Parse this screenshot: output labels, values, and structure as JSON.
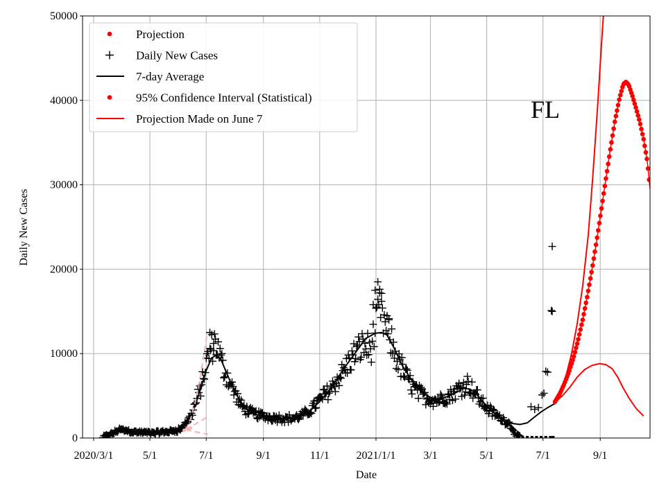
{
  "chart_data": {
    "type": "line",
    "state_label": "FL",
    "xlabel": "Date",
    "ylabel": "Daily New Cases",
    "ylim": [
      0,
      50000
    ],
    "xlim_days": [
      -12,
      603
    ],
    "x_origin": "2020-03-01",
    "grid": true,
    "legend_position": "top-left",
    "y_ticks": [
      {
        "value": 0,
        "label": "0"
      },
      {
        "value": 10000,
        "label": "10000"
      },
      {
        "value": 20000,
        "label": "20000"
      },
      {
        "value": 30000,
        "label": "30000"
      },
      {
        "value": 40000,
        "label": "40000"
      },
      {
        "value": 50000,
        "label": "50000"
      }
    ],
    "x_ticks": [
      {
        "day": 0,
        "label": "2020/3/1"
      },
      {
        "day": 61,
        "label": "5/1"
      },
      {
        "day": 122,
        "label": "7/1"
      },
      {
        "day": 184,
        "label": "9/1"
      },
      {
        "day": 245,
        "label": "11/1"
      },
      {
        "day": 306,
        "label": "2021/1/1"
      },
      {
        "day": 365,
        "label": "3/1"
      },
      {
        "day": 426,
        "label": "5/1"
      },
      {
        "day": 487,
        "label": "7/1"
      },
      {
        "day": 549,
        "label": "9/1"
      }
    ],
    "legend": [
      {
        "label": "Projection",
        "kind": "dot",
        "color": "#ff0000"
      },
      {
        "label": "Daily New Cases",
        "kind": "plus",
        "color": "#000000"
      },
      {
        "label": "7-day Average",
        "kind": "line",
        "color": "#000000"
      },
      {
        "label": "95% Confidence Interval (Statistical)",
        "kind": "dot",
        "color": "#ff0000"
      },
      {
        "label": "Projection Made on June 7",
        "kind": "line",
        "color": "#ff0000"
      }
    ],
    "series": [
      {
        "name": "7-day Average",
        "color": "#000000",
        "points": [
          [
            14,
            100
          ],
          [
            20,
            450
          ],
          [
            26,
            850
          ],
          [
            32,
            950
          ],
          [
            40,
            800
          ],
          [
            50,
            650
          ],
          [
            60,
            600
          ],
          [
            70,
            650
          ],
          [
            80,
            700
          ],
          [
            90,
            1000
          ],
          [
            100,
            1800
          ],
          [
            108,
            3200
          ],
          [
            115,
            5500
          ],
          [
            122,
            8000
          ],
          [
            128,
            9500
          ],
          [
            133,
            9800
          ],
          [
            138,
            9300
          ],
          [
            143,
            8000
          ],
          [
            150,
            6200
          ],
          [
            158,
            4500
          ],
          [
            165,
            3500
          ],
          [
            175,
            2800
          ],
          [
            185,
            2600
          ],
          [
            195,
            2500
          ],
          [
            205,
            2300
          ],
          [
            215,
            2300
          ],
          [
            225,
            2600
          ],
          [
            235,
            3300
          ],
          [
            245,
            4300
          ],
          [
            255,
            5600
          ],
          [
            265,
            7200
          ],
          [
            275,
            8800
          ],
          [
            285,
            10300
          ],
          [
            295,
            11800
          ],
          [
            305,
            12400
          ],
          [
            312,
            12500
          ],
          [
            318,
            12200
          ],
          [
            325,
            10800
          ],
          [
            335,
            8500
          ],
          [
            345,
            6800
          ],
          [
            355,
            5500
          ],
          [
            365,
            4800
          ],
          [
            375,
            4500
          ],
          [
            385,
            5000
          ],
          [
            395,
            5500
          ],
          [
            400,
            5900
          ],
          [
            408,
            5800
          ],
          [
            415,
            5200
          ],
          [
            425,
            3900
          ],
          [
            435,
            2900
          ],
          [
            445,
            2000
          ],
          [
            455,
            1700
          ],
          [
            462,
            1600
          ],
          [
            470,
            1800
          ],
          [
            478,
            2500
          ],
          [
            485,
            3100
          ],
          [
            492,
            3600
          ],
          [
            500,
            4100
          ]
        ]
      },
      {
        "name": "Projection",
        "color": "#ff0000",
        "points": [
          [
            500,
            4300
          ],
          [
            505,
            5200
          ],
          [
            510,
            6400
          ],
          [
            515,
            7800
          ],
          [
            520,
            9500
          ],
          [
            525,
            11600
          ],
          [
            530,
            14000
          ],
          [
            535,
            16800
          ],
          [
            540,
            19900
          ],
          [
            545,
            23300
          ],
          [
            550,
            26900
          ],
          [
            555,
            30600
          ],
          [
            560,
            34200
          ],
          [
            565,
            37600
          ],
          [
            570,
            40300
          ],
          [
            574,
            41900
          ],
          [
            577,
            42200
          ],
          [
            580,
            41800
          ],
          [
            584,
            40500
          ],
          [
            588,
            39000
          ],
          [
            592,
            37400
          ],
          [
            596,
            35400
          ],
          [
            600,
            32800
          ],
          [
            603,
            29500
          ]
        ]
      },
      {
        "name": "Projection Made on June 7",
        "color": "#ff0000",
        "points": [
          [
            500,
            4200
          ],
          [
            508,
            5000
          ],
          [
            516,
            6000
          ],
          [
            524,
            7200
          ],
          [
            532,
            8100
          ],
          [
            540,
            8600
          ],
          [
            548,
            8800
          ],
          [
            555,
            8700
          ],
          [
            562,
            8200
          ],
          [
            568,
            7200
          ],
          [
            574,
            5900
          ],
          [
            581,
            4600
          ],
          [
            588,
            3500
          ],
          [
            596,
            2600
          ]
        ]
      },
      {
        "name": "Upper projection bound",
        "color": "#ff0000",
        "points": [
          [
            500,
            4300
          ],
          [
            506,
            5600
          ],
          [
            512,
            7400
          ],
          [
            518,
            10000
          ],
          [
            524,
            13500
          ],
          [
            530,
            18000
          ],
          [
            536,
            24000
          ],
          [
            541,
            31000
          ],
          [
            546,
            39000
          ],
          [
            550,
            46000
          ],
          [
            553,
            51000
          ]
        ]
      },
      {
        "name": "Early June projection (faded)",
        "color": "#f4b6b6",
        "points": [
          [
            100,
            1000
          ],
          [
            105,
            2200
          ],
          [
            110,
            4200
          ],
          [
            115,
            6800
          ],
          [
            119,
            9600
          ],
          [
            123,
            12300
          ]
        ]
      },
      {
        "name": "Early June lower bound (faded)",
        "color": "#f4b6b6",
        "points": [
          [
            100,
            1000
          ],
          [
            108,
            800
          ],
          [
            116,
            600
          ],
          [
            124,
            450
          ]
        ]
      },
      {
        "name": "Early June mid bound (faded)",
        "color": "#f4b6b6",
        "points": [
          [
            100,
            1000
          ],
          [
            108,
            1500
          ],
          [
            116,
            2000
          ],
          [
            123,
            2500
          ]
        ]
      }
    ],
    "daily_new_cases_anchors": [
      [
        0,
        0
      ],
      [
        10,
        100
      ],
      [
        20,
        500
      ],
      [
        28,
        1000
      ],
      [
        35,
        900
      ],
      [
        45,
        700
      ],
      [
        55,
        650
      ],
      [
        65,
        600
      ],
      [
        75,
        700
      ],
      [
        85,
        800
      ],
      [
        95,
        1100
      ],
      [
        105,
        2500
      ],
      [
        115,
        5500
      ],
      [
        125,
        10000
      ],
      [
        132,
        11500
      ],
      [
        140,
        8500
      ],
      [
        150,
        6000
      ],
      [
        160,
        3800
      ],
      [
        170,
        3000
      ],
      [
        180,
        2700
      ],
      [
        190,
        2500
      ],
      [
        200,
        2400
      ],
      [
        210,
        2300
      ],
      [
        220,
        2400
      ],
      [
        232,
        3000
      ],
      [
        245,
        4500
      ],
      [
        258,
        6000
      ],
      [
        270,
        7800
      ],
      [
        282,
        9800
      ],
      [
        292,
        11000
      ],
      [
        300,
        10500
      ],
      [
        306,
        13000
      ],
      [
        310,
        15500
      ],
      [
        315,
        13500
      ],
      [
        322,
        11500
      ],
      [
        330,
        9000
      ],
      [
        340,
        7000
      ],
      [
        350,
        5500
      ],
      [
        360,
        4800
      ],
      [
        372,
        4500
      ],
      [
        385,
        5000
      ],
      [
        398,
        6000
      ],
      [
        405,
        6500
      ],
      [
        412,
        5600
      ],
      [
        420,
        4300
      ],
      [
        430,
        3200
      ],
      [
        440,
        2400
      ],
      [
        450,
        1800
      ],
      [
        458,
        300
      ],
      [
        465,
        0
      ],
      [
        500,
        0
      ]
    ],
    "daily_new_cases_outliers": [
      [
        474,
        3700
      ],
      [
        478,
        3400
      ],
      [
        482,
        3600
      ],
      [
        486,
        5100
      ],
      [
        488,
        5300
      ],
      [
        490,
        7900
      ],
      [
        492,
        7800
      ],
      [
        496,
        15100
      ],
      [
        497,
        15000
      ],
      [
        497,
        22700
      ],
      [
        305,
        17500
      ],
      [
        308,
        18500
      ],
      [
        312,
        16200
      ],
      [
        310,
        17200
      ],
      [
        126,
        12500
      ],
      [
        130,
        11200
      ],
      [
        303,
        15800
      ],
      [
        320,
        14000
      ]
    ],
    "zero_markers_days": [
      465,
      470,
      475,
      480,
      485,
      490,
      495,
      498
    ],
    "faded_dots": [
      [
        98,
        900
      ],
      [
        101,
        1100
      ],
      [
        103,
        1000
      ],
      [
        105,
        1200
      ]
    ]
  }
}
